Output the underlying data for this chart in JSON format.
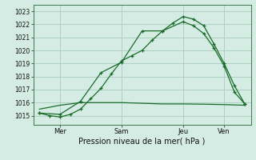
{
  "bg_color": "#d4ece3",
  "grid_color": "#a8ccbc",
  "line_color": "#1a6b2a",
  "title": "Pression niveau de la mer( hPa )",
  "ylim": [
    1014.3,
    1023.5
  ],
  "yticks": [
    1015,
    1016,
    1017,
    1018,
    1019,
    1020,
    1021,
    1022,
    1023
  ],
  "xtick_labels": [
    "Mer",
    "Sam",
    "Jeu",
    "Ven"
  ],
  "xtick_positions": [
    1,
    4,
    7,
    9
  ],
  "series1_x": [
    0,
    0.5,
    1.0,
    1.5,
    2.0,
    2.5,
    3.0,
    3.5,
    4.0,
    4.5,
    5.0,
    5.5,
    6.0,
    6.5,
    7.0,
    7.5,
    8.0,
    8.5,
    9.0,
    9.5,
    10.0
  ],
  "series1_y": [
    1015.2,
    1015.0,
    1014.9,
    1015.1,
    1015.5,
    1016.3,
    1017.1,
    1018.2,
    1019.2,
    1019.6,
    1020.0,
    1020.8,
    1021.5,
    1022.1,
    1022.6,
    1022.4,
    1021.9,
    1020.5,
    1019.0,
    1017.3,
    1015.9
  ],
  "series1_markers_x": [
    0,
    0.5,
    1.0,
    1.5,
    2.0,
    2.5,
    3.0,
    3.5,
    4.0,
    4.5,
    5.0,
    5.5,
    6.0,
    6.5,
    7.0,
    7.5,
    8.0,
    8.5,
    9.0,
    9.5,
    10.0
  ],
  "series1_markers_y": [
    1015.2,
    1015.0,
    1014.9,
    1015.1,
    1015.5,
    1016.3,
    1017.1,
    1018.2,
    1019.2,
    1019.6,
    1020.0,
    1020.8,
    1021.5,
    1022.1,
    1022.6,
    1022.4,
    1021.9,
    1020.5,
    1019.0,
    1017.3,
    1015.9
  ],
  "series2_x": [
    0,
    1.0,
    2.0,
    3.0,
    4.0,
    5.0,
    6.0,
    7.0,
    7.5,
    8.0,
    8.5,
    9.0,
    9.5,
    10.0
  ],
  "series2_y": [
    1015.2,
    1015.1,
    1016.1,
    1018.3,
    1019.1,
    1021.5,
    1021.5,
    1022.2,
    1021.9,
    1021.3,
    1020.2,
    1018.8,
    1016.8,
    1015.9
  ],
  "series2_markers_x": [
    0,
    1.0,
    2.0,
    3.0,
    4.0,
    5.0,
    6.0,
    7.0,
    7.5,
    8.0,
    8.5,
    9.0,
    9.5,
    10.0
  ],
  "series2_markers_y": [
    1015.2,
    1015.1,
    1016.1,
    1018.3,
    1019.1,
    1021.5,
    1021.5,
    1022.2,
    1021.9,
    1021.3,
    1020.2,
    1018.8,
    1016.8,
    1015.9
  ],
  "series3_x": [
    0,
    1.0,
    2.0,
    3.0,
    4.0,
    5.0,
    6.0,
    7.0,
    8.0,
    9.0,
    10.0
  ],
  "series3_y": [
    1015.5,
    1015.8,
    1016.0,
    1016.0,
    1016.0,
    1015.95,
    1015.9,
    1015.9,
    1015.88,
    1015.85,
    1015.8
  ],
  "xlim": [
    -0.3,
    10.3
  ]
}
